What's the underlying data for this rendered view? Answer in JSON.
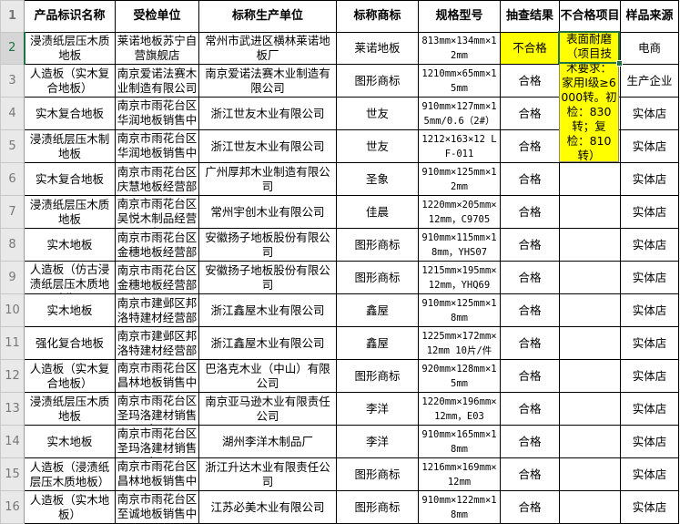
{
  "columns": [
    "产品标识名称",
    "受检单位",
    "标称生产单位",
    "标称商标",
    "规格型号",
    "抽查结果",
    "不合格项目",
    "样品来源"
  ],
  "rows": [
    {
      "n": "2",
      "a": "浸渍纸层压木质地板",
      "b": "莱诺地板苏宁自营旗舰店",
      "c": "常州市武进区横林莱诺地板厂",
      "d": "莱诺地板",
      "e": "813mm×134mm×12mm",
      "f": "不合格",
      "g": "",
      "h": "电商"
    },
    {
      "n": "3",
      "a": "人造板（实木复合地板）",
      "b": "南京爱诺法赛木业制造有限公司",
      "c": "南京爱诺法赛木业制造有限公司",
      "d": "图形商标",
      "e": "1210mm×65mm×15mm",
      "f": "合格",
      "g": "",
      "h": "生产企业"
    },
    {
      "n": "4",
      "a": "实木复合地板",
      "b": "南京市雨花台区华润地板销售中心",
      "c": "浙江世友木业有限公司",
      "d": "世友",
      "e": "910mm×127mm×15mm/0.6（2#）",
      "f": "合格",
      "g": "",
      "h": "实体店"
    },
    {
      "n": "5",
      "a": "浸渍纸层压木制地板",
      "b": "南京市雨花台区华润地板销售中心",
      "c": "浙江世友木业有限公司",
      "d": "世友",
      "e": "1212×163×12 LF-011",
      "f": "合格",
      "g": "",
      "h": "实体店"
    },
    {
      "n": "6",
      "a": "实木复合地板",
      "b": "南京市雨花台区庆慧地板经营部",
      "c": "广州厚邦木业制造有限公司",
      "d": "圣象",
      "e": "910mm×125mm×12mm",
      "f": "合格",
      "g": "",
      "h": "实体店"
    },
    {
      "n": "7",
      "a": "浸渍纸层压木质地板",
      "b": "南京市雨花台区吴悦木制品经营部",
      "c": "常州宇创木业有限公司",
      "d": "佳晨",
      "e": "1220mm×205mm×12mm，C9705",
      "f": "合格",
      "g": "",
      "h": "实体店"
    },
    {
      "n": "8",
      "a": "实木地板",
      "b": "南京市雨花台区金穗地板经营部",
      "c": "安徽扬子地板股份有限公司",
      "d": "图形商标",
      "e": "910mm×115mm×18mm，YHS07",
      "f": "合格",
      "g": "",
      "h": "实体店"
    },
    {
      "n": "9",
      "a": "人造板（仿古浸渍纸层压木质地板）",
      "b": "南京市雨花台区金穗地板经营部",
      "c": "安徽扬子地板股份有限公司",
      "d": "图形商标",
      "e": "1215mm×195mm×12mm，YHQ69",
      "f": "合格",
      "g": "",
      "h": "实体店"
    },
    {
      "n": "10",
      "a": "实木地板",
      "b": "南京市建邺区邦洛特建材经营部",
      "c": "浙江鑫屋木业有限公司",
      "d": "鑫屋",
      "e": "910mm×125mm×18mm",
      "f": "合格",
      "g": "",
      "h": "实体店"
    },
    {
      "n": "11",
      "a": "强化复合地板",
      "b": "南京市建邺区邦洛特建材经营部",
      "c": "浙江鑫屋木业有限公司",
      "d": "鑫屋",
      "e": "1225mm×172mm×12mm 10片/件",
      "f": "合格",
      "g": "",
      "h": "实体店"
    },
    {
      "n": "12",
      "a": "人造板（实木复合地板）",
      "b": "南京市雨花台区昌林地板销售中心",
      "c": "巴洛克木业（中山）有限公司",
      "d": "图形商标",
      "e": "920mm×128mm×15mm",
      "f": "合格",
      "g": "",
      "h": "实体店"
    },
    {
      "n": "13",
      "a": "浸渍纸层压木质地板",
      "b": "南京市雨花台区圣玛洛建材销售中心",
      "c": "南京亚马逊木业有限责任公司",
      "d": "李洋",
      "e": "1220mm×196mm×12mm，E03",
      "f": "合格",
      "g": "",
      "h": "实体店"
    },
    {
      "n": "14",
      "a": "实木地板",
      "b": "南京市雨花台区圣玛洛建材销售中心",
      "c": "湖州李洋木制品厂",
      "d": "李洋",
      "e": "910mm×165mm×18mm",
      "f": "合格",
      "g": "",
      "h": "实体店"
    },
    {
      "n": "15",
      "a": "人造板（浸渍纸层压木质地板）",
      "b": "南京市雨花台区昌林地板销售中心",
      "c": "浙江升达木业有限责任公司",
      "d": "图形商标",
      "e": "1216mm×169mm×12mm",
      "f": "合格",
      "g": "",
      "h": "实体店"
    },
    {
      "n": "16",
      "a": "人造板（实木地板）",
      "b": "南京市雨花台区至诚地板销售中心",
      "c": "江苏必美木业有限公司",
      "d": "图形商标",
      "e": "910mm×122mm×18mm",
      "f": "合格",
      "g": "",
      "h": "实体店"
    }
  ],
  "textbox": "表面耐磨（项目技术要求：家用Ⅰ级≥6000转。初检：830转；复检：810转）",
  "selected_cell": "G2",
  "colors": {
    "highlight": "#ffff00",
    "selection": "#217346"
  }
}
